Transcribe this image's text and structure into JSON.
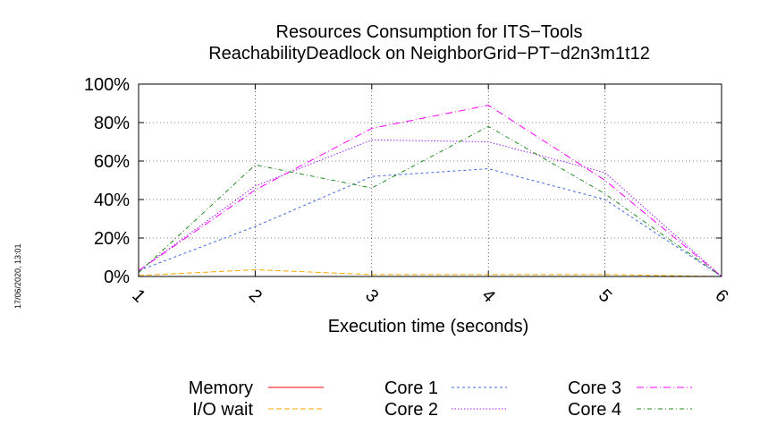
{
  "chart_data": {
    "type": "line",
    "title": [
      "Resources Consumption for ITS−Tools",
      "ReachabilityDeadlock on NeighborGrid−PT−d2n3m1t12"
    ],
    "xlabel": "Execution time (seconds)",
    "ylabel": "",
    "x": [
      1,
      2,
      3,
      4,
      5,
      6
    ],
    "x_ticks": [
      "1",
      "2",
      "3",
      "4",
      "5",
      "6"
    ],
    "xlim": [
      1,
      6
    ],
    "ylim": [
      0,
      100
    ],
    "y_ticks": [
      "0%",
      "20%",
      "40%",
      "60%",
      "80%",
      "100%"
    ],
    "grid": true,
    "legend_position": "bottom",
    "series": [
      {
        "name": "Memory",
        "color": "#ff0000",
        "dash": "solid",
        "values": [
          null,
          null,
          null,
          null,
          null,
          null
        ]
      },
      {
        "name": "I/O wait",
        "color": "#ffa500",
        "dash": "dashed",
        "values": [
          0.5,
          3.5,
          1,
          1,
          1,
          0
        ]
      },
      {
        "name": "Core 1",
        "color": "#4169e1",
        "dash": "dashed-fine",
        "values": [
          3,
          26,
          52,
          56,
          40,
          0
        ]
      },
      {
        "name": "Core 2",
        "color": "#a020f0",
        "dash": "dotted",
        "values": [
          3,
          47,
          71,
          70,
          54,
          0
        ]
      },
      {
        "name": "Core 3",
        "color": "#ff00ff",
        "dash": "dashdot-long",
        "values": [
          3,
          45,
          77,
          89,
          50,
          0
        ]
      },
      {
        "name": "Core 4",
        "color": "#228b22",
        "dash": "dashdot",
        "values": [
          2,
          58,
          46,
          78,
          43,
          0
        ]
      }
    ]
  },
  "timestamp": "17/06/2020, 13:01"
}
